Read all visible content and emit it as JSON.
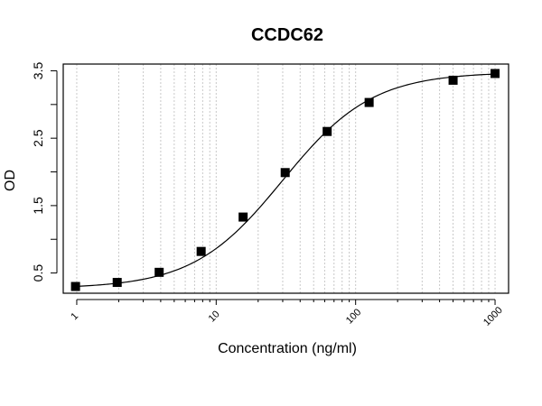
{
  "chart_data": {
    "type": "scatter",
    "title": "CCDC62",
    "xlabel": "Concentration (ng/ml)",
    "ylabel": "OD",
    "x_scale": "log",
    "xlim": [
      0.8,
      1250
    ],
    "ylim": [
      0.2,
      3.6
    ],
    "x_ticks": [
      1,
      10,
      100,
      1000
    ],
    "x_tick_labels": [
      "1",
      "10",
      "100",
      "1000"
    ],
    "y_ticks": [
      0.5,
      1.0,
      1.5,
      2.0,
      2.5,
      3.0,
      3.5
    ],
    "y_tick_labels": [
      "0.5",
      "",
      "1.5",
      "",
      "2.5",
      "",
      "3.5"
    ],
    "grid": "vertical dotted at log-decade subdivisions",
    "points": {
      "x": [
        0.98,
        1.95,
        3.9,
        7.8,
        15.6,
        31.25,
        62.5,
        125,
        500,
        1000
      ],
      "y": [
        0.3,
        0.36,
        0.51,
        0.82,
        1.33,
        1.99,
        2.6,
        3.03,
        3.36,
        3.46
      ]
    },
    "fit_curve": {
      "model": "4PL",
      "bottom": 0.27,
      "top": 3.48,
      "ec50": 30,
      "hill": 1.35
    },
    "colors": {
      "points": "#000000",
      "line": "#000000",
      "grid": "#c8c8c8"
    }
  }
}
